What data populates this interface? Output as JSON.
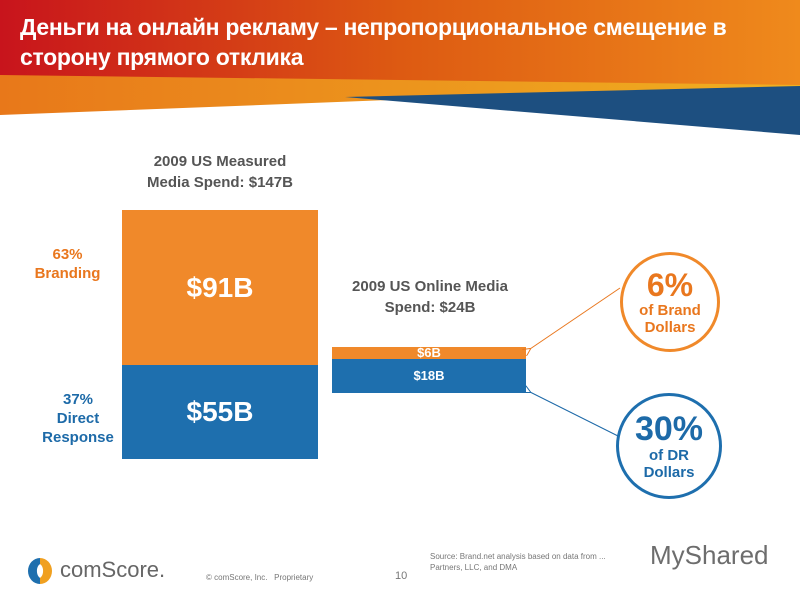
{
  "title": "Деньги на онлайн рекламу – непропорциональное смещение в сторону прямого отклика",
  "colors": {
    "branding": "#f0892a",
    "direct_response": "#1e6fae",
    "branding_text": "#e9771e",
    "dr_text": "#1d6aa8"
  },
  "chart_data": {
    "type": "bar",
    "stacked": true,
    "categories": [
      "2009 US Measured Media Spend: $147B",
      "2009 US Online Media Spend: $24B"
    ],
    "series": [
      {
        "name": "Branding",
        "values": [
          91,
          6
        ],
        "labels": [
          "$91B",
          "$6B"
        ],
        "share_label": "63%"
      },
      {
        "name": "Direct Response",
        "values": [
          55,
          18
        ],
        "labels": [
          "$55B",
          "$18B"
        ],
        "share_label": "37%"
      }
    ],
    "unit": "$B"
  },
  "labels": {
    "measured_title_1": "2009 US Measured",
    "measured_title_2": "Media Spend: $147B",
    "online_title_1": "2009 US Online Media",
    "online_title_2": "Spend: $24B",
    "branding_pct": "63%",
    "branding_name": "Branding",
    "dr_pct": "37%",
    "dr_name_1": "Direct",
    "dr_name_2": "Response"
  },
  "callouts": {
    "brand": {
      "pct": "6%",
      "line1": "of Brand",
      "line2": "Dollars"
    },
    "dr": {
      "pct": "30%",
      "line1": "of DR",
      "line2": "Dollars"
    }
  },
  "footer": {
    "logo": "comScore.",
    "copyright": "© comScore, Inc.   Proprietary",
    "page": "10",
    "source_1": "Source: Brand.net analysis based on data from ...",
    "source_2": "Partners, LLC, and DMA",
    "watermark": "MyShared"
  }
}
